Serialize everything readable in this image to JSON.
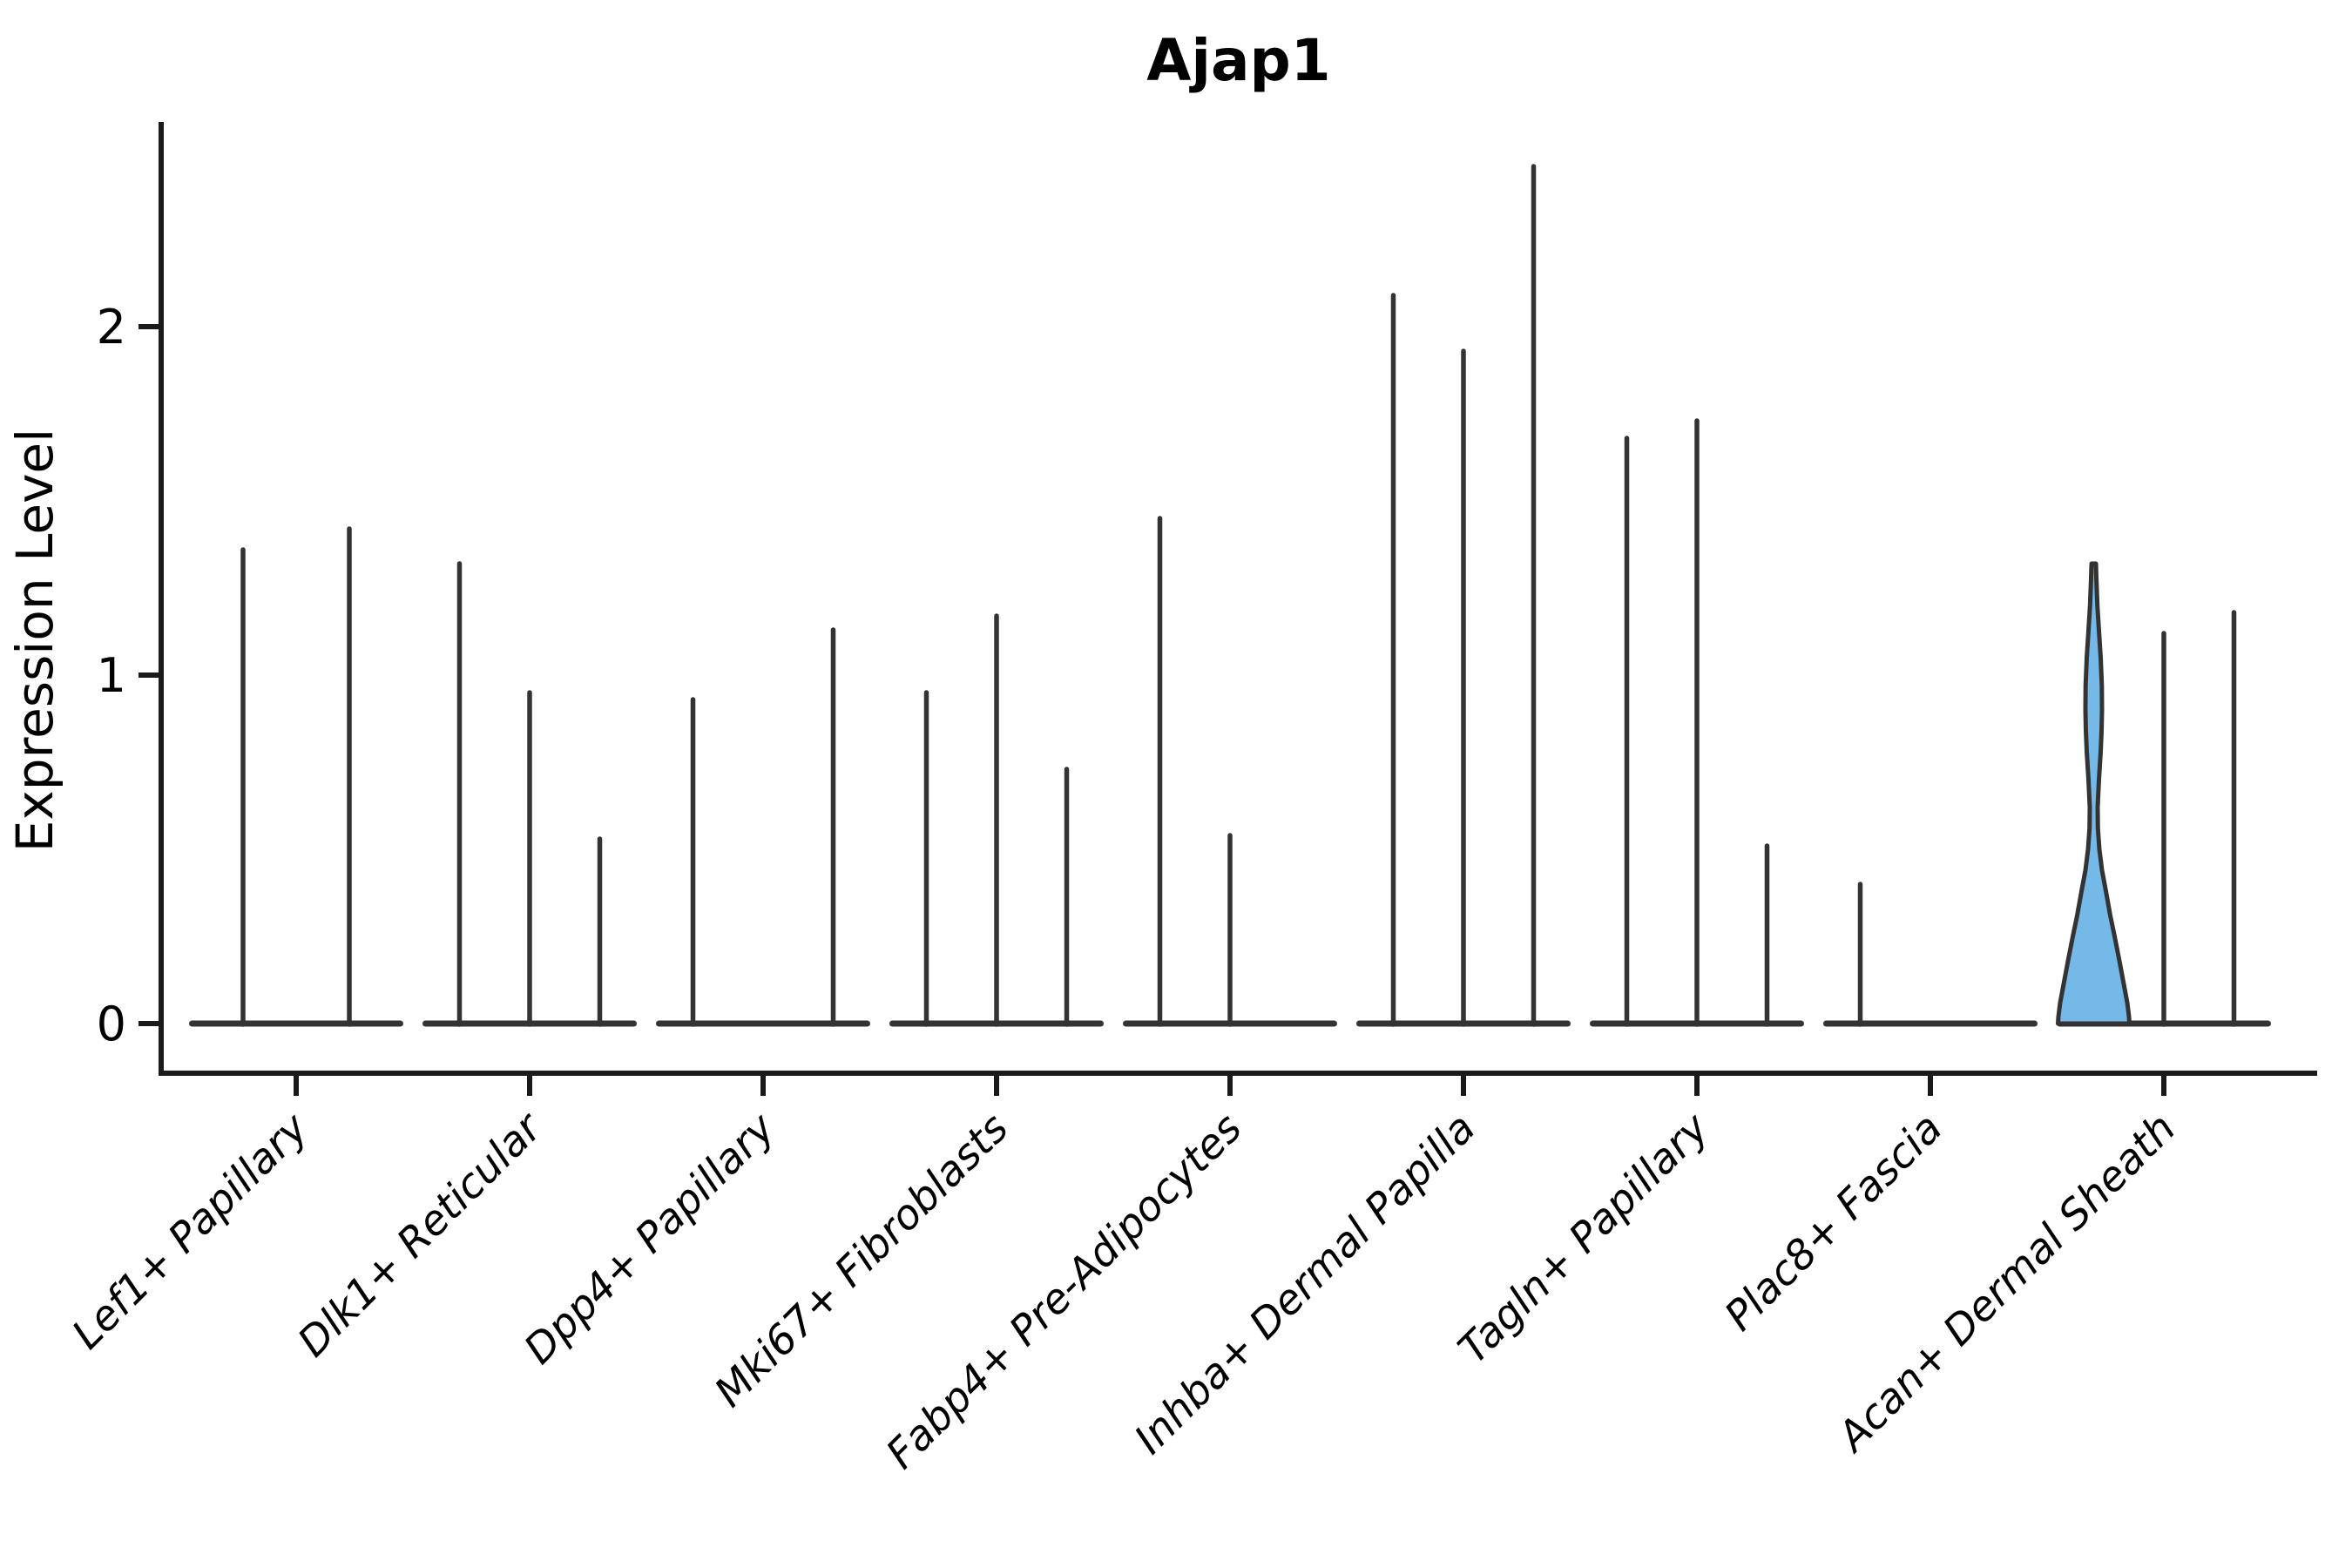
{
  "title": "Ajap1",
  "axes": {
    "ylabel": "Expression Level"
  },
  "chart_data": {
    "type": "violin",
    "title": "Ajap1",
    "xlabel": "",
    "ylabel": "Expression Level",
    "ylim": [
      -0.14,
      2.59
    ],
    "yticks": [
      0,
      1,
      2
    ],
    "grid": false,
    "legend": "none",
    "background": "#ffffff",
    "outline_color": "#333333",
    "spine_color": "#1a1a1a",
    "categories": [
      "Lef1+ Papillary",
      "Dlk1+ Reticular",
      "Dpp4+ Papillary",
      "Mki67+ Fibroblasts",
      "Fabp4+ Pre-Adipocytes",
      "Inhba+ Dermal Papilla",
      "Tagln+ Papillary",
      "Plac8+ Fascia",
      "Acan+ Dermal Sheath"
    ],
    "groups": [
      {
        "category": "Lef1+ Papillary",
        "violin_maxima": [
          1.36,
          1.42
        ]
      },
      {
        "category": "Dlk1+ Reticular",
        "violin_maxima": [
          1.32,
          0.95,
          0.53
        ]
      },
      {
        "category": "Dpp4+ Papillary",
        "violin_maxima": [
          0.93,
          0.0,
          1.13
        ]
      },
      {
        "category": "Mki67+ Fibroblasts",
        "violin_maxima": [
          0.95,
          1.17,
          0.73
        ]
      },
      {
        "category": "Fabp4+ Pre-Adipocytes",
        "violin_maxima": [
          1.45,
          0.54,
          0.0
        ]
      },
      {
        "category": "Inhba+ Dermal Papilla",
        "violin_maxima": [
          2.09,
          1.93,
          2.46
        ]
      },
      {
        "category": "Tagln+ Papillary",
        "violin_maxima": [
          1.68,
          1.73,
          0.51
        ]
      },
      {
        "category": "Plac8+ Fascia",
        "violin_maxima": [
          0.4,
          0.0,
          0.0
        ]
      },
      {
        "category": "Acan+ Dermal Sheath",
        "violin_maxima": [
          1.32,
          1.12,
          1.18
        ]
      }
    ],
    "highlighted_violin": {
      "category": "Acan+ Dermal Sheath",
      "position": 0,
      "max": 1.32,
      "fill_color": "#74b9e8",
      "profile": [
        [
          1.32,
          2.5
        ],
        [
          1.28,
          3.0
        ],
        [
          1.2,
          4.2
        ],
        [
          1.12,
          6.2
        ],
        [
          1.05,
          8.0
        ],
        [
          0.97,
          9.3
        ],
        [
          0.9,
          9.5
        ],
        [
          0.84,
          9.0
        ],
        [
          0.78,
          8.0
        ],
        [
          0.7,
          6.0
        ],
        [
          0.62,
          4.5
        ],
        [
          0.56,
          4.8
        ],
        [
          0.5,
          6.5
        ],
        [
          0.44,
          9.5
        ],
        [
          0.38,
          14.0
        ],
        [
          0.31,
          19.0
        ],
        [
          0.25,
          24.0
        ],
        [
          0.18,
          29.5
        ],
        [
          0.12,
          34.0
        ],
        [
          0.06,
          38.5
        ],
        [
          0.02,
          40.5
        ],
        [
          0.0,
          41.0
        ]
      ]
    }
  }
}
